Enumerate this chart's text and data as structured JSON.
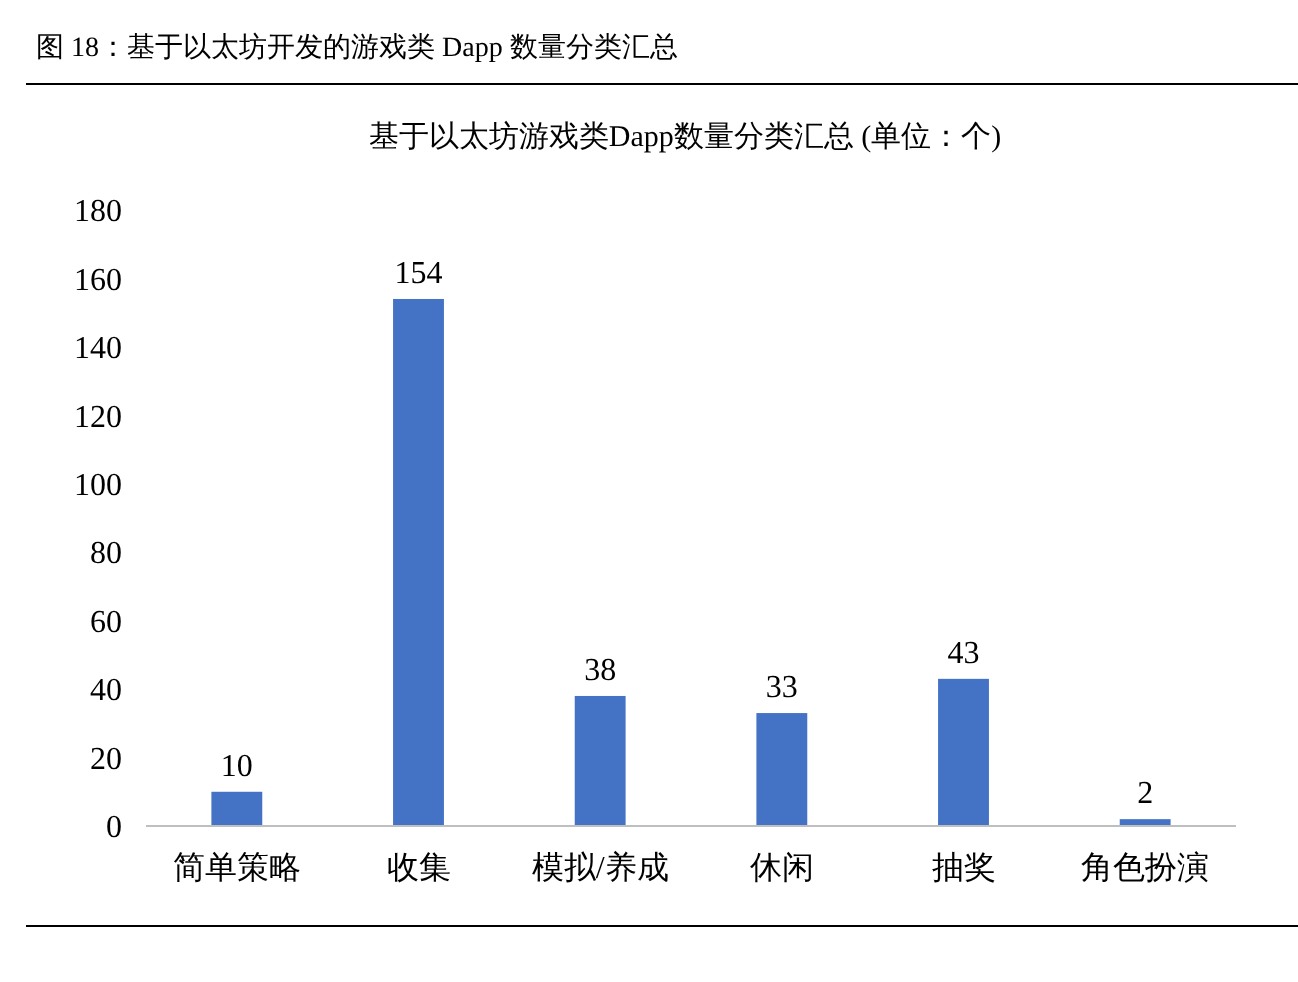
{
  "chart_data": {
    "type": "bar",
    "title": "基于以太坊游戏类Dapp数量分类汇总 (单位：个)",
    "annotations": [
      "图 18：基于以太坊开发的游戏类 Dapp 数量分类汇总"
    ],
    "categories": [
      "简单策略",
      "收集",
      "模拟/养成",
      "休闲",
      "抽奖",
      "角色扮演"
    ],
    "values": [
      10,
      154,
      38,
      33,
      43,
      2
    ],
    "color": "#4472c4",
    "ylim": [
      0,
      180
    ],
    "yticks": [
      0,
      20,
      40,
      60,
      80,
      100,
      120,
      140,
      160,
      180
    ],
    "grid": false,
    "data_labels": true
  }
}
